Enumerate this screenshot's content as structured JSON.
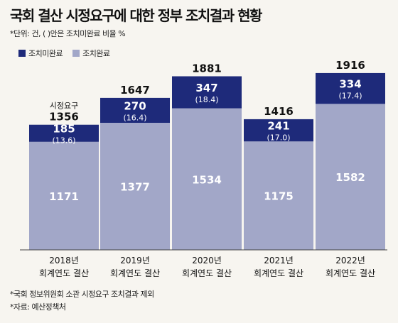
{
  "title": "국회 결산 시정요구에 대한 정부 조치결과 현황",
  "unit_note": "*단위: 건, ( )안은 조치미완료 비율 %",
  "footnotes": [
    "*국회 정보위원회 소관 시정요구 조치결과 제외",
    "*자료: 예산정책처"
  ],
  "colors": {
    "pending": "#1e2a7a",
    "completed": "#a2a7c8",
    "axis": "#444444",
    "text_light": "#ffffff",
    "text_dark": "#111111"
  },
  "chart_data": {
    "type": "bar",
    "stacked": true,
    "categories": [
      "2018년\n회계연도 결산",
      "2019년\n회계연도 결산",
      "2020년\n회계연도 결산",
      "2021년\n회계연도 결산",
      "2022년\n회계연도 결산"
    ],
    "series": [
      {
        "name": "조치완료",
        "values": [
          1171,
          1377,
          1534,
          1175,
          1582
        ]
      },
      {
        "name": "조치미완료",
        "values": [
          185,
          270,
          347,
          241,
          334
        ],
        "rate_labels": [
          "(13.6)",
          "(16.4)",
          "(18.4)",
          "(17.0)",
          "(17.4)"
        ]
      }
    ],
    "totals": [
      "1356",
      "1647",
      "1881",
      "1416",
      "1916"
    ],
    "total_prefix": "시정요구",
    "legend": {
      "position": "top-left",
      "items": [
        "조치미완료",
        "조치완료"
      ]
    },
    "ylim": [
      0,
      2000
    ],
    "grid": false
  }
}
